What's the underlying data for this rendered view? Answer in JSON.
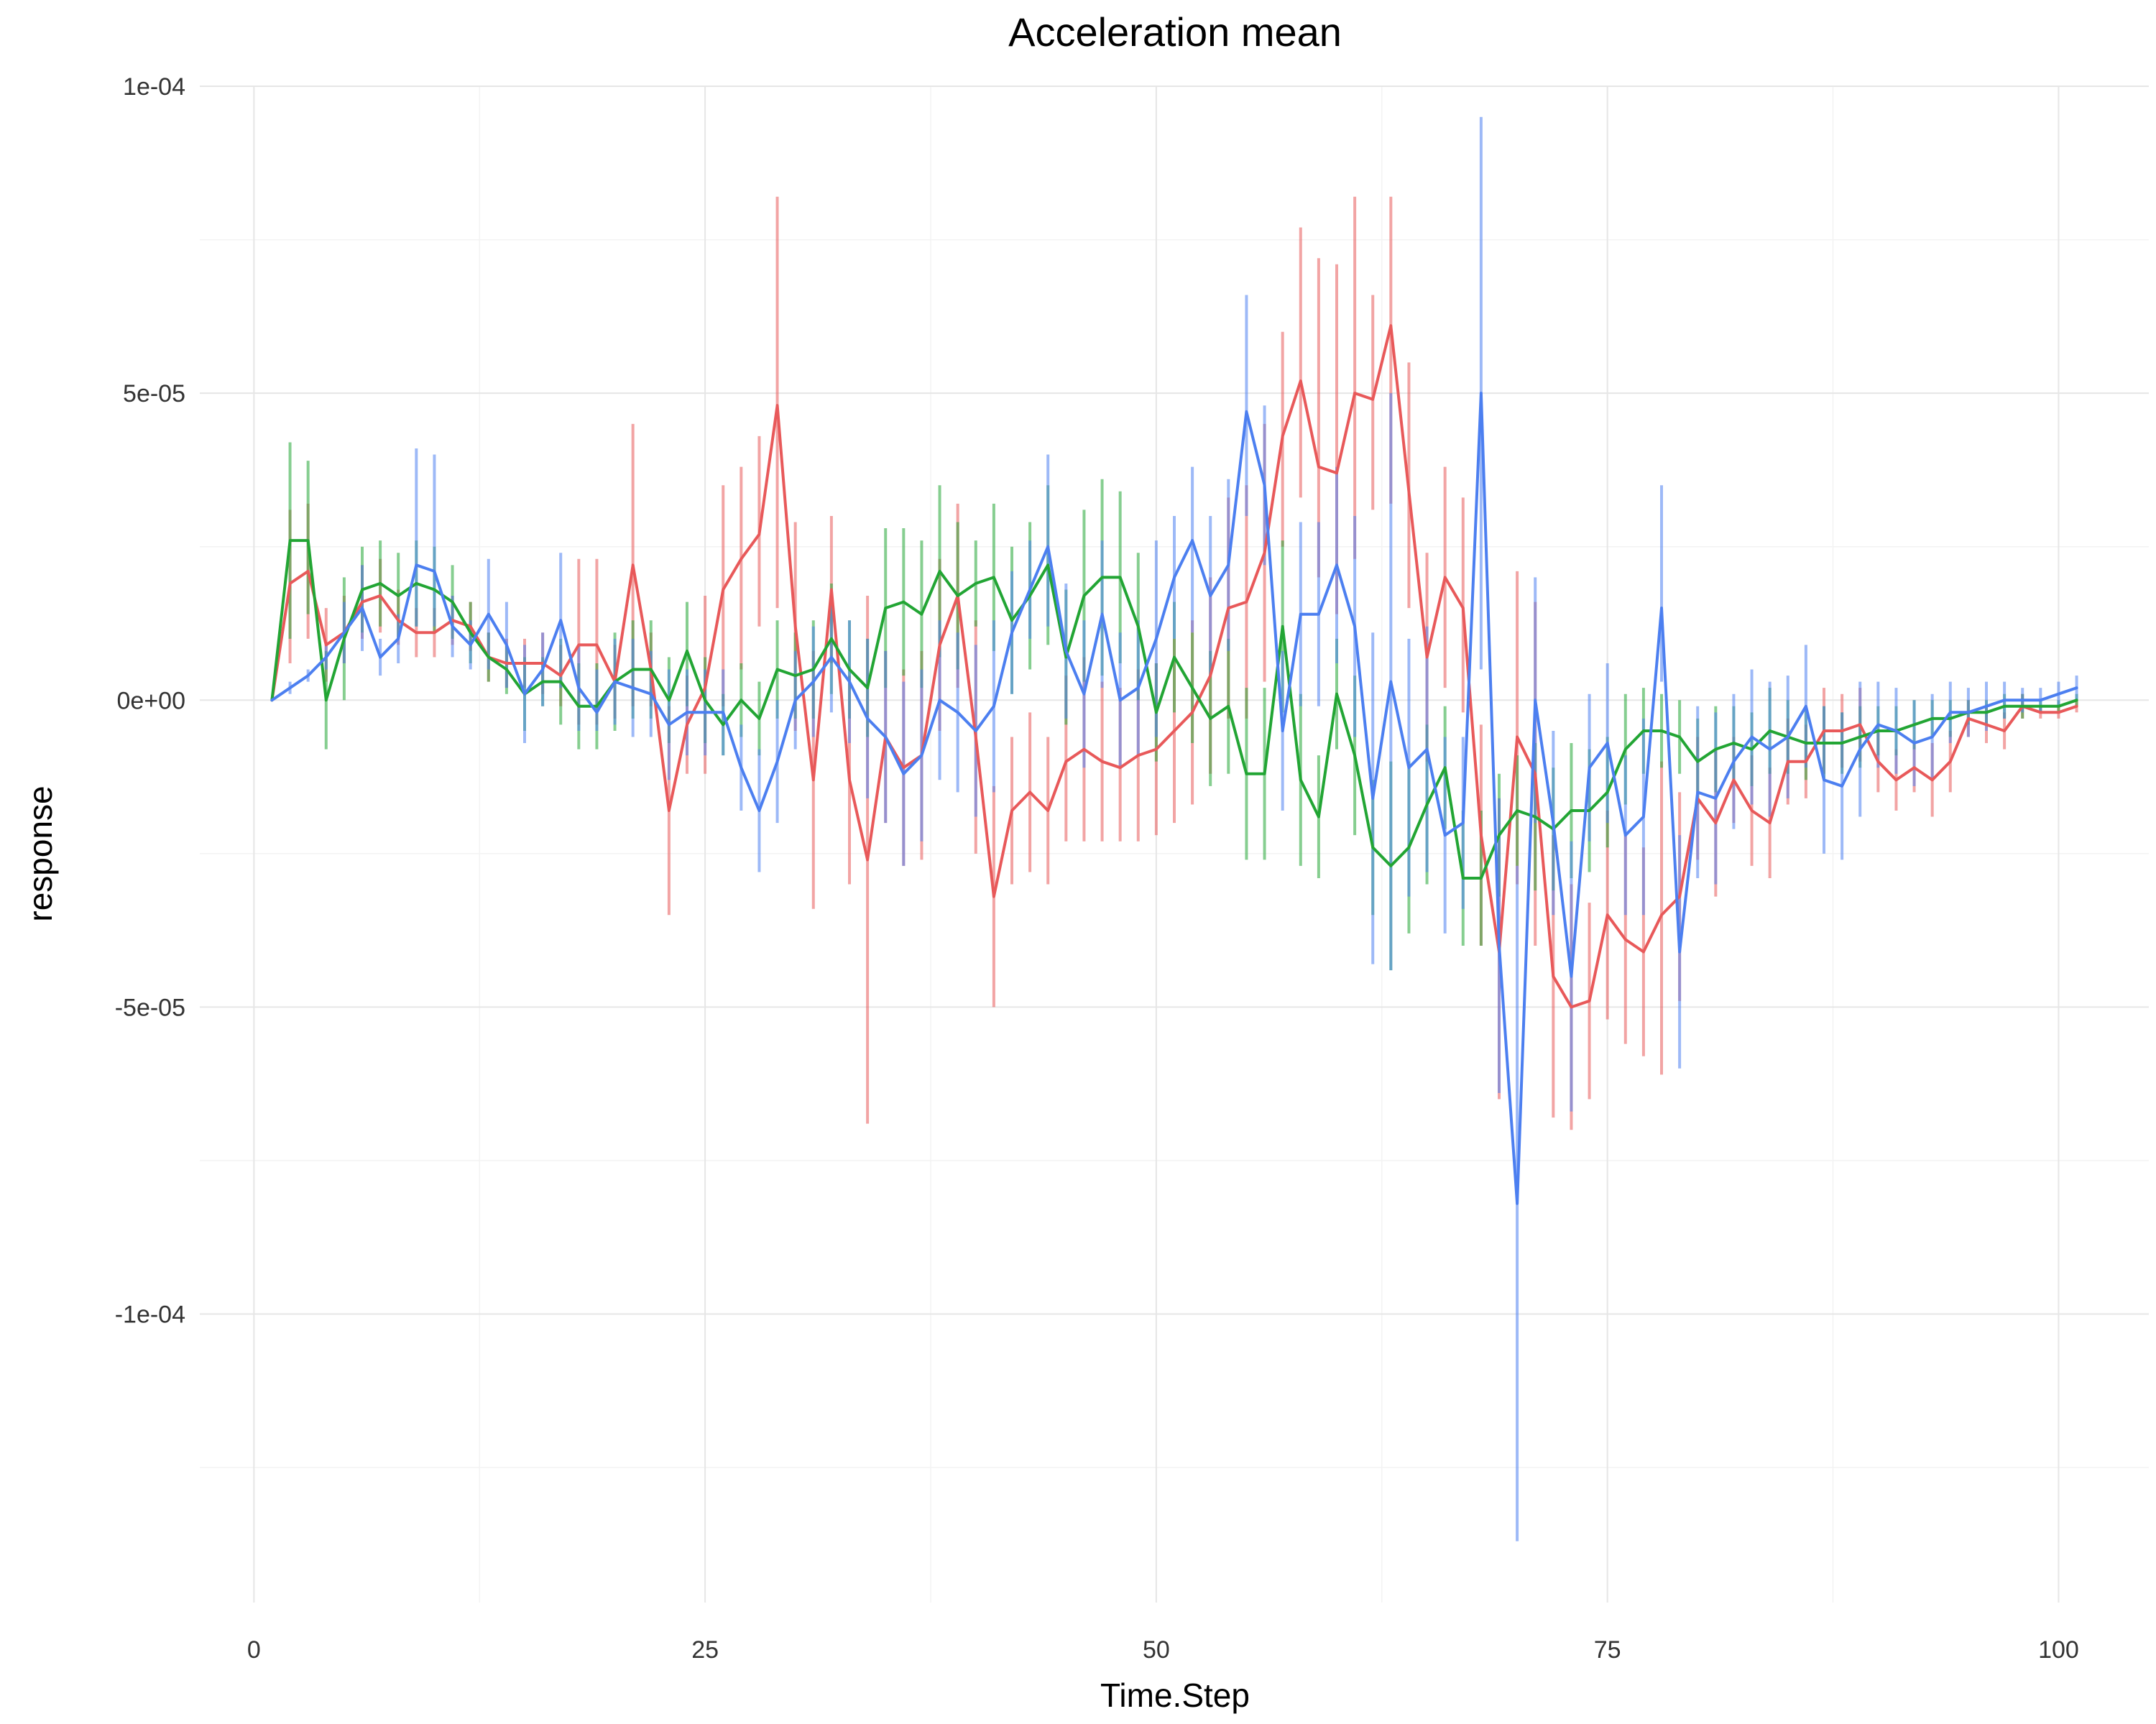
{
  "chart_data": {
    "type": "line",
    "title": "Acceleration mean",
    "xlabel": "Time.Step",
    "ylabel": "response",
    "xlim": [
      -3,
      105
    ],
    "ylim": [
      -0.000147,
      0.0001
    ],
    "x_ticks": [
      0,
      25,
      50,
      75,
      100
    ],
    "x_tick_labels": [
      "0",
      "25",
      "50",
      "75",
      "100"
    ],
    "y_ticks": [
      -0.0001,
      -5e-05,
      0,
      5e-05,
      0.0001
    ],
    "y_tick_labels": [
      "-1e-04",
      "-5e-05",
      "0e+00",
      "5e-05",
      "1e-04"
    ],
    "grid": true,
    "legend": "none",
    "colors": [
      "#e8595a",
      "#22a534",
      "#4c7ff0"
    ],
    "x": [
      1,
      2,
      3,
      4,
      5,
      6,
      7,
      8,
      9,
      10,
      11,
      12,
      13,
      14,
      15,
      16,
      17,
      18,
      19,
      20,
      21,
      22,
      23,
      24,
      25,
      26,
      27,
      28,
      29,
      30,
      31,
      32,
      33,
      34,
      35,
      36,
      37,
      38,
      39,
      40,
      41,
      42,
      43,
      44,
      45,
      46,
      47,
      48,
      49,
      50,
      51,
      52,
      53,
      54,
      55,
      56,
      57,
      58,
      59,
      60,
      61,
      62,
      63,
      64,
      65,
      66,
      67,
      68,
      69,
      70,
      71,
      72,
      73,
      74,
      75,
      76,
      77,
      78,
      79,
      80,
      81,
      82,
      83,
      84,
      85,
      86,
      87,
      88,
      89,
      90,
      91,
      92,
      93,
      94,
      95,
      96,
      97,
      98,
      99,
      100,
      101
    ],
    "series": [
      {
        "color": "#e8595a",
        "values": [
          0,
          19,
          21,
          9,
          11,
          16,
          17,
          13,
          11,
          11,
          13,
          12,
          7,
          6,
          6,
          6,
          4,
          9,
          9,
          3,
          22,
          5,
          -18,
          -4,
          2,
          18,
          23,
          27,
          48,
          12,
          -13,
          18,
          -13,
          -26,
          -6,
          -11,
          -9,
          9,
          17,
          -6,
          -32,
          -18,
          -15,
          -18,
          -10,
          -8,
          -10,
          -11,
          -9,
          -8,
          -5,
          -2,
          4,
          15,
          16,
          24,
          43,
          52,
          38,
          37,
          50,
          49,
          61,
          34,
          7,
          20,
          15,
          -22,
          -41,
          -6,
          -12,
          -45,
          -50,
          -49,
          -35,
          -39,
          -41,
          -35,
          -32,
          -16,
          -20,
          -13,
          -18,
          -20,
          -10,
          -10,
          -5,
          -5,
          -4,
          -10,
          -13,
          -11,
          -13,
          -10,
          -3,
          -4,
          -5,
          -1,
          -2,
          -2,
          -1
        ],
        "error_low": [
          0,
          6,
          10,
          3,
          6,
          10,
          11,
          9,
          7,
          7,
          9,
          8,
          3,
          2,
          2,
          1,
          -1,
          -4,
          -4,
          -3,
          -1,
          -1,
          -35,
          -12,
          -12,
          -1,
          5,
          12,
          15,
          -5,
          -34,
          6,
          -30,
          -69,
          -20,
          -27,
          -26,
          -5,
          2,
          -25,
          -50,
          -30,
          -28,
          -30,
          -23,
          -23,
          -23,
          -23,
          -23,
          -22,
          -20,
          -17,
          -12,
          -3,
          -3,
          3,
          25,
          33,
          20,
          14,
          23,
          31,
          32,
          15,
          -10,
          2,
          -2,
          -40,
          -65,
          -30,
          -40,
          -68,
          -70,
          -65,
          -52,
          -56,
          -58,
          -61,
          -49,
          -26,
          -32,
          -20,
          -27,
          -29,
          -17,
          -16,
          -12,
          -11,
          -10,
          -15,
          -18,
          -15,
          -19,
          -15,
          -6,
          -7,
          -8,
          -3,
          -3,
          -3,
          -2
        ],
        "error_high": [
          0,
          31,
          32,
          15,
          17,
          22,
          23,
          18,
          15,
          15,
          17,
          16,
          11,
          10,
          10,
          11,
          9,
          23,
          23,
          9,
          45,
          11,
          -1,
          4,
          17,
          35,
          38,
          43,
          82,
          29,
          8,
          30,
          4,
          17,
          8,
          5,
          8,
          23,
          32,
          13,
          -14,
          -6,
          -2,
          -6,
          4,
          7,
          3,
          2,
          5,
          6,
          10,
          13,
          20,
          33,
          35,
          45,
          60,
          77,
          72,
          71,
          82,
          66,
          82,
          55,
          24,
          38,
          33,
          -4,
          -16,
          21,
          16,
          -22,
          -30,
          -33,
          -18,
          -22,
          -24,
          -10,
          -15,
          -6,
          -8,
          -6,
          -9,
          -11,
          -3,
          -4,
          2,
          1,
          2,
          -5,
          -8,
          -7,
          -7,
          -5,
          0,
          -1,
          -2,
          1,
          -1,
          -1,
          0
        ]
      },
      {
        "color": "#22a534",
        "values": [
          0,
          26,
          26,
          0,
          10,
          18,
          19,
          17,
          19,
          18,
          16,
          11,
          7,
          5,
          1,
          3,
          3,
          -1,
          -1,
          3,
          5,
          5,
          0,
          8,
          0,
          -4,
          0,
          -3,
          5,
          4,
          5,
          10,
          5,
          2,
          15,
          16,
          14,
          21,
          17,
          19,
          20,
          13,
          17,
          22,
          7,
          17,
          20,
          20,
          12,
          -2,
          7,
          2,
          -3,
          -1,
          -12,
          -12,
          12,
          -13,
          -19,
          1,
          -9,
          -24,
          -27,
          -24,
          -17,
          -11,
          -29,
          -29,
          -22,
          -18,
          -19,
          -21,
          -18,
          -18,
          -15,
          -8,
          -5,
          -5,
          -6,
          -10,
          -8,
          -7,
          -8,
          -5,
          -6,
          -7,
          -7,
          -7,
          -6,
          -5,
          -5,
          -4,
          -3,
          -3,
          -2,
          -2,
          -1,
          -1,
          -1,
          -1,
          0
        ],
        "error_low": [
          0,
          10,
          14,
          -8,
          0,
          11,
          12,
          10,
          12,
          11,
          10,
          6,
          3,
          1,
          -5,
          -1,
          -4,
          -8,
          -8,
          -5,
          -3,
          -3,
          -7,
          -1,
          -7,
          -9,
          -6,
          -9,
          -3,
          -3,
          -3,
          1,
          -3,
          -6,
          2,
          4,
          2,
          7,
          5,
          12,
          8,
          1,
          5,
          9,
          -4,
          3,
          4,
          6,
          0,
          -10,
          -2,
          -7,
          -14,
          -12,
          -26,
          -26,
          -2,
          -27,
          -29,
          -8,
          -22,
          -35,
          -44,
          -38,
          -30,
          -21,
          -40,
          -40,
          -32,
          -27,
          -31,
          -31,
          -29,
          -28,
          -24,
          -17,
          -12,
          -11,
          -12,
          -17,
          -15,
          -13,
          -14,
          -12,
          -12,
          -13,
          -13,
          -12,
          -11,
          -9,
          -9,
          -8,
          -6,
          -6,
          -4,
          -4,
          -3,
          -3,
          -2,
          -2,
          -1
        ],
        "error_high": [
          0,
          42,
          39,
          8,
          20,
          25,
          26,
          24,
          26,
          25,
          22,
          16,
          11,
          9,
          7,
          7,
          10,
          6,
          6,
          11,
          13,
          13,
          7,
          16,
          7,
          1,
          6,
          3,
          13,
          11,
          13,
          19,
          13,
          10,
          28,
          28,
          26,
          35,
          29,
          26,
          32,
          25,
          29,
          35,
          18,
          31,
          36,
          34,
          24,
          6,
          16,
          11,
          8,
          10,
          2,
          2,
          26,
          1,
          -9,
          10,
          4,
          -13,
          -10,
          -10,
          -4,
          -1,
          -18,
          -18,
          -12,
          -9,
          -7,
          -11,
          -7,
          -8,
          -6,
          1,
          2,
          1,
          0,
          -3,
          -1,
          -1,
          -2,
          2,
          0,
          -1,
          -1,
          -2,
          -1,
          -1,
          -1,
          0,
          0,
          0,
          0,
          0,
          1,
          1,
          0,
          0,
          1
        ],
        "name": ""
      },
      {
        "color": "#4c7ff0",
        "values": [
          0,
          2,
          4,
          7,
          11,
          15,
          7,
          10,
          22,
          21,
          12,
          9,
          14,
          9,
          1,
          5,
          13,
          2,
          -2,
          3,
          2,
          1,
          -4,
          -2,
          -2,
          -2,
          -11,
          -18,
          -10,
          0,
          3,
          7,
          3,
          -3,
          -6,
          -12,
          -9,
          0,
          -2,
          -5,
          -1,
          11,
          18,
          25,
          8,
          1,
          14,
          0,
          2,
          10,
          20,
          26,
          17,
          22,
          47,
          35,
          -5,
          14,
          14,
          22,
          12,
          -16,
          3,
          -11,
          -8,
          -22,
          -20,
          50,
          -40,
          -82,
          0,
          -20,
          -45,
          -11,
          -7,
          -22,
          -19,
          15,
          -41,
          -15,
          -16,
          -10,
          -6,
          -8,
          -6,
          -1,
          -13,
          -14,
          -8,
          -4,
          -5,
          -7,
          -6,
          -2,
          -2,
          -1,
          0,
          0,
          0,
          1,
          2
        ],
        "error_low": [
          0,
          1,
          3,
          5,
          6,
          8,
          4,
          6,
          12,
          12,
          7,
          5,
          5,
          2,
          -7,
          -1,
          2,
          -5,
          -5,
          -4,
          -6,
          -6,
          -13,
          -9,
          -9,
          -9,
          -18,
          -28,
          -20,
          -8,
          -6,
          -2,
          -7,
          -16,
          -20,
          -27,
          -23,
          -13,
          -15,
          -19,
          -15,
          1,
          10,
          12,
          -3,
          -11,
          2,
          -11,
          -9,
          -6,
          10,
          11,
          4,
          8,
          30,
          22,
          -18,
          -1,
          -1,
          6,
          -6,
          -43,
          -44,
          -32,
          -28,
          -38,
          -34,
          5,
          -64,
          -137,
          -20,
          -35,
          -67,
          -23,
          -20,
          -35,
          -35,
          3,
          -60,
          -29,
          -30,
          -21,
          -17,
          -19,
          -16,
          -11,
          -25,
          -26,
          -19,
          -11,
          -12,
          -14,
          -13,
          -7,
          -6,
          -5,
          -3,
          -2,
          -2,
          -1,
          0
        ],
        "error_high": [
          0,
          3,
          5,
          9,
          16,
          22,
          10,
          14,
          41,
          40,
          17,
          13,
          23,
          16,
          9,
          11,
          24,
          9,
          5,
          10,
          10,
          8,
          5,
          5,
          5,
          5,
          -4,
          -8,
          0,
          8,
          12,
          16,
          13,
          10,
          8,
          3,
          5,
          13,
          11,
          9,
          13,
          21,
          26,
          40,
          19,
          13,
          26,
          11,
          13,
          26,
          30,
          38,
          30,
          36,
          66,
          48,
          8,
          29,
          29,
          38,
          30,
          11,
          50,
          10,
          12,
          -6,
          -6,
          95,
          -16,
          -27,
          20,
          -5,
          -23,
          1,
          6,
          -9,
          -3,
          35,
          -22,
          -1,
          -2,
          1,
          5,
          3,
          4,
          9,
          -1,
          -2,
          3,
          3,
          2,
          0,
          1,
          3,
          2,
          3,
          3,
          2,
          2,
          3,
          4
        ],
        "name": ""
      }
    ]
  }
}
